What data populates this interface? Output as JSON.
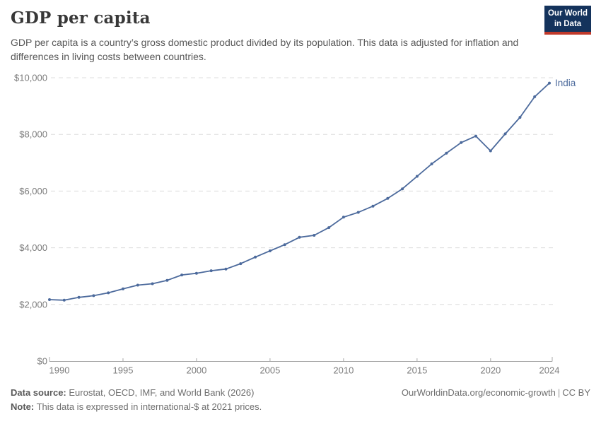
{
  "header": {
    "title": "GDP per capita",
    "subtitle": "GDP per capita is a country’s gross domestic product divided by its population. This data is adjusted for inflation and differences in living costs between countries.",
    "logo": {
      "line1": "Our World",
      "line2": "in Data",
      "bg_color": "#14335c",
      "accent_color": "#c0392b"
    }
  },
  "chart_data": {
    "type": "line",
    "title": "GDP per capita",
    "series": [
      {
        "name": "India",
        "values": [
          2170,
          2150,
          2250,
          2310,
          2410,
          2550,
          2680,
          2730,
          2850,
          3040,
          3100,
          3190,
          3250,
          3440,
          3670,
          3890,
          4110,
          4370,
          4440,
          4710,
          5080,
          5250,
          5470,
          5740,
          6080,
          6520,
          6960,
          7340,
          7710,
          7940,
          7420,
          8020,
          8600,
          9330,
          9810
        ]
      }
    ],
    "x": [
      1990,
      1991,
      1992,
      1993,
      1994,
      1995,
      1996,
      1997,
      1998,
      1999,
      2000,
      2001,
      2002,
      2003,
      2004,
      2005,
      2006,
      2007,
      2008,
      2009,
      2010,
      2011,
      2012,
      2013,
      2014,
      2015,
      2016,
      2017,
      2018,
      2019,
      2020,
      2021,
      2022,
      2023,
      2024
    ],
    "xlabel": "",
    "ylabel": "",
    "ylim": [
      0,
      10000
    ],
    "yticks": [
      0,
      2000,
      4000,
      6000,
      8000,
      10000
    ],
    "ytick_labels": [
      "$0",
      "$2,000",
      "$4,000",
      "$6,000",
      "$8,000",
      "$10,000"
    ],
    "xticks": [
      1990,
      1995,
      2000,
      2005,
      2010,
      2015,
      2020,
      2024
    ],
    "grid": "horizontal-dashed",
    "legend_position": "end-of-line-label",
    "line_color": "#4C6A9C",
    "grid_color": "#dcdcdc",
    "axis_color": "#a8a8a8",
    "tick_label_color": "#7d7d7d"
  },
  "footer": {
    "source_label": "Data source:",
    "source_text": " Eurostat, OECD, IMF, and World Bank (2026)",
    "link": "OurWorldinData.org/economic-growth",
    "separator": "|",
    "license": "CC BY",
    "note_label": "Note:",
    "note_text": " This data is expressed in international-$ at 2021 prices."
  }
}
